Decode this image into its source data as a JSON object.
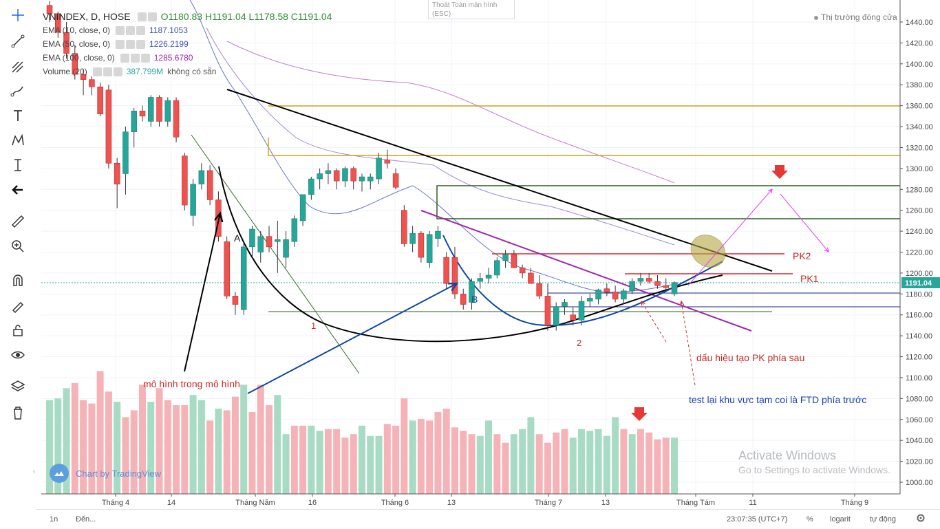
{
  "header": {
    "symbol": "VNINDEX, D, HOSE",
    "open": "O1180.83",
    "high": "H1191.04",
    "low": "L1178.58",
    "close": "C1191.04",
    "fullscreen_exit": "Thoát Toàn màn hình",
    "fullscreen_key": "(ESC)",
    "market_status": "Thị trường đóng cửa"
  },
  "indicators": [
    {
      "label": "EMA (10, close, 0)",
      "value": "1187.1053",
      "color": "#3f51b5"
    },
    {
      "label": "EMA (50, close, 0)",
      "value": "1226.2199",
      "color": "#7e57c2"
    },
    {
      "label": "EMA (100, close, 0)",
      "value": "1285.6780",
      "color": "#ab47bc"
    },
    {
      "label": "Volume (20)",
      "value": "387.799M",
      "value2": "không có sẵn",
      "color": "#26a69a"
    }
  ],
  "bottom": {
    "interval": "1n",
    "goto": "Đến...",
    "time": "23:07:35 (UTC+7)",
    "percent": "%",
    "log": "logarit",
    "auto": "tự động"
  },
  "watermark": {
    "line1": "Activate Windows",
    "line2": "Go to Settings to activate Windows."
  },
  "brand": "Chart by TradingView",
  "toolbar_icons": [
    "crosshair-icon",
    "trend-line-icon",
    "pitchfork-icon",
    "brush-icon",
    "text-icon",
    "pattern-icon",
    "measure-icon",
    "back-arrow-icon",
    "ruler-icon",
    "zoom-in-icon",
    "magnet-icon",
    "pencil-lock-icon",
    "lock-icon",
    "eye-icon",
    "layers-icon",
    "trash-icon"
  ],
  "chart_data": {
    "type": "candlestick",
    "price_axis": {
      "min": 990,
      "max": 1450,
      "ticks": [
        1000,
        1020,
        1040,
        1060,
        1080,
        1100,
        1120,
        1140,
        1160,
        1180,
        1200,
        1220,
        1240,
        1260,
        1280,
        1300,
        1320,
        1340,
        1360,
        1380,
        1400,
        1420,
        1440
      ]
    },
    "last_price": "1191.04",
    "last_price_color": "#26a69a",
    "up_color": "#26a69a",
    "down_color": "#ef5350",
    "x_labels": [
      "Tháng 4",
      "14",
      "Tháng Năm",
      "16",
      "Tháng 6",
      "13",
      "Tháng 7",
      "13",
      "Tháng Tám",
      "11",
      "Tháng 9"
    ],
    "candles": [
      [
        1456,
        1460,
        1440,
        1448
      ],
      [
        1448,
        1450,
        1425,
        1430
      ],
      [
        1430,
        1440,
        1405,
        1410
      ],
      [
        1410,
        1418,
        1385,
        1390
      ],
      [
        1390,
        1395,
        1370,
        1385
      ],
      [
        1385,
        1388,
        1370,
        1378
      ],
      [
        1378,
        1382,
        1350,
        1352
      ],
      [
        1375,
        1380,
        1300,
        1305
      ],
      [
        1305,
        1310,
        1262,
        1285
      ],
      [
        1295,
        1340,
        1275,
        1335
      ],
      [
        1335,
        1358,
        1320,
        1355
      ],
      [
        1355,
        1360,
        1345,
        1350
      ],
      [
        1345,
        1370,
        1340,
        1368
      ],
      [
        1368,
        1370,
        1340,
        1345
      ],
      [
        1345,
        1368,
        1340,
        1365
      ],
      [
        1365,
        1368,
        1325,
        1330
      ],
      [
        1312,
        1315,
        1260,
        1265
      ],
      [
        1255,
        1290,
        1245,
        1285
      ],
      [
        1285,
        1305,
        1280,
        1298
      ],
      [
        1298,
        1303,
        1265,
        1270
      ],
      [
        1270,
        1278,
        1230,
        1235
      ],
      [
        1230,
        1235,
        1175,
        1178
      ],
      [
        1178,
        1182,
        1160,
        1170
      ],
      [
        1165,
        1230,
        1160,
        1225
      ],
      [
        1225,
        1245,
        1215,
        1242
      ],
      [
        1220,
        1240,
        1210,
        1235
      ],
      [
        1235,
        1245,
        1220,
        1225
      ],
      [
        1230,
        1250,
        1200,
        1232
      ],
      [
        1215,
        1240,
        1205,
        1232
      ],
      [
        1230,
        1255,
        1225,
        1252
      ],
      [
        1250,
        1275,
        1245,
        1275
      ],
      [
        1275,
        1292,
        1270,
        1290
      ],
      [
        1290,
        1300,
        1280,
        1295
      ],
      [
        1295,
        1305,
        1285,
        1298
      ],
      [
        1298,
        1300,
        1280,
        1288
      ],
      [
        1288,
        1302,
        1282,
        1300
      ],
      [
        1300,
        1302,
        1280,
        1288
      ],
      [
        1288,
        1295,
        1278,
        1292
      ],
      [
        1288,
        1295,
        1280,
        1292
      ],
      [
        1290,
        1315,
        1285,
        1310
      ],
      [
        1308,
        1318,
        1300,
        1305
      ],
      [
        1295,
        1300,
        1280,
        1282
      ],
      [
        1260,
        1265,
        1225,
        1228
      ],
      [
        1228,
        1245,
        1220,
        1238
      ],
      [
        1238,
        1240,
        1210,
        1215
      ],
      [
        1210,
        1240,
        1205,
        1237
      ],
      [
        1233,
        1245,
        1225,
        1240
      ],
      [
        1215,
        1220,
        1185,
        1190
      ],
      [
        1215,
        1225,
        1175,
        1180
      ],
      [
        1180,
        1185,
        1165,
        1170
      ],
      [
        1172,
        1195,
        1165,
        1192
      ],
      [
        1192,
        1200,
        1185,
        1195
      ],
      [
        1195,
        1205,
        1190,
        1198
      ],
      [
        1198,
        1215,
        1195,
        1212
      ],
      [
        1212,
        1222,
        1205,
        1218
      ],
      [
        1218,
        1222,
        1205,
        1205
      ],
      [
        1205,
        1208,
        1195,
        1200
      ],
      [
        1200,
        1205,
        1190,
        1190
      ],
      [
        1190,
        1198,
        1175,
        1178
      ],
      [
        1178,
        1180,
        1145,
        1150
      ],
      [
        1150,
        1172,
        1145,
        1168
      ],
      [
        1168,
        1175,
        1160,
        1172
      ],
      [
        1160,
        1168,
        1150,
        1155
      ],
      [
        1155,
        1178,
        1150,
        1173
      ],
      [
        1173,
        1180,
        1168,
        1176
      ],
      [
        1175,
        1185,
        1170,
        1184
      ],
      [
        1185,
        1190,
        1178,
        1182
      ],
      [
        1182,
        1188,
        1172,
        1175
      ],
      [
        1175,
        1185,
        1170,
        1183
      ],
      [
        1183,
        1195,
        1180,
        1192
      ],
      [
        1192,
        1200,
        1188,
        1195
      ],
      [
        1195,
        1200,
        1190,
        1192
      ],
      [
        1192,
        1198,
        1185,
        1188
      ],
      [
        1188,
        1195,
        1183,
        1186
      ],
      [
        1180,
        1192,
        1178,
        1191
      ]
    ],
    "volume": [
      [
        0.55,
        1
      ],
      [
        0.56,
        1
      ],
      [
        0.62,
        1
      ],
      [
        0.65,
        0
      ],
      [
        0.55,
        0
      ],
      [
        0.53,
        0
      ],
      [
        0.72,
        0
      ],
      [
        0.6,
        0
      ],
      [
        0.54,
        1
      ],
      [
        0.45,
        0
      ],
      [
        0.49,
        0
      ],
      [
        0.64,
        0
      ],
      [
        0.54,
        1
      ],
      [
        0.62,
        0
      ],
      [
        0.55,
        0
      ],
      [
        0.52,
        0
      ],
      [
        0.52,
        0
      ],
      [
        0.58,
        1
      ],
      [
        0.55,
        1
      ],
      [
        0.43,
        0
      ],
      [
        0.5,
        1
      ],
      [
        0.49,
        0
      ],
      [
        0.57,
        0
      ],
      [
        0.64,
        1
      ],
      [
        0.48,
        0
      ],
      [
        0.64,
        0
      ],
      [
        0.52,
        0
      ],
      [
        0.58,
        1
      ],
      [
        0.35,
        1
      ],
      [
        0.4,
        0
      ],
      [
        0.4,
        0
      ],
      [
        0.4,
        1
      ],
      [
        0.37,
        1
      ],
      [
        0.38,
        0
      ],
      [
        0.38,
        0
      ],
      [
        0.33,
        0
      ],
      [
        0.35,
        0
      ],
      [
        0.4,
        1
      ],
      [
        0.34,
        1
      ],
      [
        0.34,
        1
      ],
      [
        0.41,
        0
      ],
      [
        0.4,
        0
      ],
      [
        0.56,
        0
      ],
      [
        0.43,
        1
      ],
      [
        0.44,
        0
      ],
      [
        0.43,
        0
      ],
      [
        0.48,
        0
      ],
      [
        0.5,
        0
      ],
      [
        0.39,
        0
      ],
      [
        0.37,
        0
      ],
      [
        0.35,
        0
      ],
      [
        0.34,
        1
      ],
      [
        0.43,
        1
      ],
      [
        0.35,
        0
      ],
      [
        0.3,
        0
      ],
      [
        0.35,
        1
      ],
      [
        0.38,
        1
      ],
      [
        0.45,
        1
      ],
      [
        0.35,
        0
      ],
      [
        0.3,
        0
      ],
      [
        0.36,
        0
      ],
      [
        0.38,
        0
      ],
      [
        0.33,
        1
      ],
      [
        0.38,
        1
      ],
      [
        0.37,
        1
      ],
      [
        0.38,
        1
      ],
      [
        0.34,
        1
      ],
      [
        0.45,
        1
      ],
      [
        0.38,
        0
      ],
      [
        0.35,
        1
      ],
      [
        0.38,
        0
      ],
      [
        0.36,
        0
      ],
      [
        0.32,
        0
      ],
      [
        0.33,
        0
      ],
      [
        0.33,
        1
      ]
    ],
    "annotations": {
      "label_A": "A",
      "label_B": "B",
      "label_1": "1",
      "label_2": "2",
      "pk1": "PK1",
      "pk2": "PK2",
      "text_pattern": "mô hình trong mô hình",
      "text_signal": "dấu hiệu tạo PK phía sau",
      "text_test": "test lại khu vực tạm coi là FTD phía trước"
    }
  }
}
